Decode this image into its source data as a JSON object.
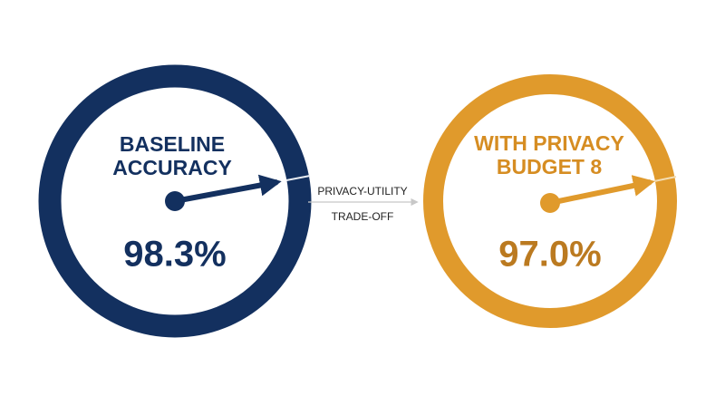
{
  "gauges": [
    {
      "label_lines": [
        "BASELINE",
        "ACCURACY"
      ],
      "value": "98.3%"
    },
    {
      "label_lines": [
        "WITH PRIVACY",
        "BUDGET 8"
      ],
      "value": "97.0%"
    }
  ],
  "connector": {
    "lines": [
      "PRIVACY-UTILITY",
      "TRADE-OFF"
    ]
  }
}
